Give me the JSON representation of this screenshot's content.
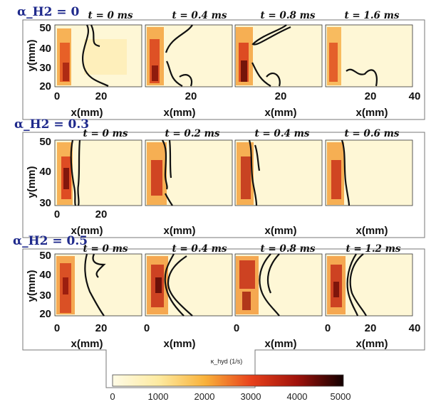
{
  "rows": [
    {
      "alpha_label": "α_H2 = 0",
      "y_ticks": [
        "20",
        "30",
        "40",
        "50"
      ],
      "y_label": "y(mm)",
      "x_label": "x(mm)",
      "panels": [
        {
          "time": "t = 0 ms",
          "x_ticks": [
            "0",
            "20"
          ]
        },
        {
          "time": "t = 0.4 ms",
          "x_ticks": [
            "20"
          ]
        },
        {
          "time": "t = 0.8 ms",
          "x_ticks": [
            "20"
          ]
        },
        {
          "time": "t = 1.6 ms",
          "x_ticks": [
            "20",
            "40"
          ]
        }
      ]
    },
    {
      "alpha_label": "α_H2 = 0.3",
      "y_ticks": [
        "30",
        "40",
        "50"
      ],
      "y_label": "y(mm)",
      "x_label": "x(mm)",
      "panels": [
        {
          "time": "t = 0 ms",
          "x_ticks": [
            "0",
            "20"
          ]
        },
        {
          "time": "t = 0.2 ms",
          "x_ticks": []
        },
        {
          "time": "t = 0.4 ms",
          "x_ticks": []
        },
        {
          "time": "t = 0.6 ms",
          "x_ticks": []
        }
      ]
    },
    {
      "alpha_label": "α_H2 = 0.5",
      "y_ticks": [
        "20",
        "30",
        "40",
        "50"
      ],
      "y_label": "y(mm)",
      "x_label": "x(mm)",
      "panels": [
        {
          "time": "t = 0 ms",
          "x_ticks": [
            "0",
            "20"
          ]
        },
        {
          "time": "t = 0.4 ms",
          "x_ticks": [
            "0"
          ]
        },
        {
          "time": "t = 0.8 ms",
          "x_ticks": [
            "0"
          ]
        },
        {
          "time": "t = 1.2 ms",
          "x_ticks": [
            "0",
            "20",
            "40"
          ]
        }
      ]
    }
  ],
  "colorbar": {
    "label": "κ_hyd (1/s)",
    "ticks": [
      "0",
      "1000",
      "2000",
      "3000",
      "4000",
      "5000"
    ],
    "range": [
      0,
      5000
    ],
    "colors": [
      "#fffbe6",
      "#fdeaa0",
      "#f9b23a",
      "#e8411b",
      "#a0120b",
      "#120000"
    ]
  }
}
